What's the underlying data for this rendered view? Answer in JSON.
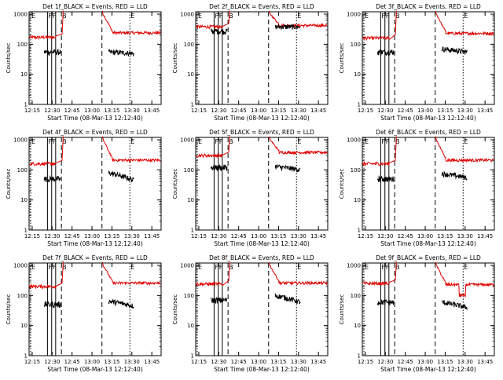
{
  "chart_data": {
    "type": "line",
    "figure": {
      "ylabel": "Counts/sec",
      "xlabel": "Start Time (08-Mar-13 12:12:40)",
      "x_tick_labels": [
        "12:15",
        "12:30",
        "12:45",
        "13:00",
        "13:15",
        "13:30",
        "13:45"
      ],
      "y_tick_labels": [
        "1",
        "10",
        "100",
        "1000"
      ],
      "yscale": "log",
      "ylim": [
        1,
        1200
      ],
      "xlim": [
        "12:12:40",
        "13:52:00"
      ],
      "marker_labels": [
        "F",
        "F",
        "B",
        "E"
      ],
      "series_colors": {
        "events": "#000000",
        "lld": "#e00000"
      },
      "grid": false
    },
    "panels": [
      {
        "title": "Det 1f_BLACK = Events, RED = LLD",
        "lld": {
          "pre": 170,
          "post": 240,
          "dip": []
        },
        "events": {
          "pre": 55,
          "post": 55,
          "tail": 50
        }
      },
      {
        "title": "Det 2f_BLACK = Events, RED = LLD",
        "lld": {
          "pre": 380,
          "post": 420,
          "dip": []
        },
        "events": {
          "pre": 270,
          "post": 380,
          "tail": 380
        }
      },
      {
        "title": "Det 3f_BLACK = Events, RED = LLD",
        "lld": {
          "pre": 160,
          "post": 230,
          "dip": []
        },
        "events": {
          "pre": 55,
          "post": 70,
          "tail": 55
        }
      },
      {
        "title": "Det 4f_BLACK = Events, RED = LLD",
        "lld": {
          "pre": 160,
          "post": 210,
          "dip": []
        },
        "events": {
          "pre": 50,
          "post": 80,
          "tail": 45
        }
      },
      {
        "title": "Det 5f_BLACK = Events, RED = LLD",
        "lld": {
          "pre": 300,
          "post": 380,
          "dip": []
        },
        "events": {
          "pre": 120,
          "post": 130,
          "tail": 100
        }
      },
      {
        "title": "Det 6f_BLACK = Events, RED = LLD",
        "lld": {
          "pre": 160,
          "post": 210,
          "dip": []
        },
        "events": {
          "pre": 50,
          "post": 75,
          "tail": 55
        }
      },
      {
        "title": "Det 7f_BLACK = Events, RED = LLD",
        "lld": {
          "pre": 200,
          "post": 260,
          "dip": []
        },
        "events": {
          "pre": 50,
          "post": 65,
          "tail": 45
        }
      },
      {
        "title": "Det 8f_BLACK = Events, RED = LLD",
        "lld": {
          "pre": 240,
          "post": 260,
          "dip": []
        },
        "events": {
          "pre": 70,
          "post": 100,
          "tail": 60
        }
      },
      {
        "title": "Det 9f_BLACK = Events, RED = LLD",
        "lld": {
          "pre": 250,
          "post": 230,
          "dip": [
            100
          ]
        },
        "events": {
          "pre": 60,
          "post": 60,
          "tail": 40
        }
      }
    ]
  }
}
